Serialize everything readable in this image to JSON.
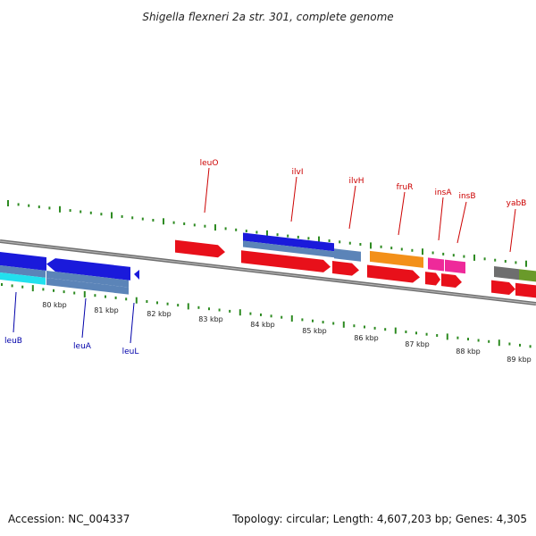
{
  "title": "Shigella flexneri 2a str. 301, complete genome",
  "footer": {
    "accession": "Accession: NC_004337",
    "summary": "Topology: circular; Length: 4,607,203 bp; Genes: 4,305"
  },
  "colors": {
    "backbone": "#8a8a8a",
    "tick": "#2e8b22",
    "label_top": "#cc0000",
    "label_bottom": "#0000aa"
  },
  "ticks": [
    {
      "label": "80 kbp"
    },
    {
      "label": "81 kbp"
    },
    {
      "label": "82 kbp"
    },
    {
      "label": "83 kbp"
    },
    {
      "label": "84 kbp"
    },
    {
      "label": "85 kbp"
    },
    {
      "label": "86 kbp"
    },
    {
      "label": "87 kbp"
    },
    {
      "label": "88 kbp"
    },
    {
      "label": "89 kbp"
    }
  ],
  "gene_labels_top": [
    {
      "name": "leuO"
    },
    {
      "name": "ilvI"
    },
    {
      "name": "ilvH"
    },
    {
      "name": "fruR"
    },
    {
      "name": "insA"
    },
    {
      "name": "insB"
    },
    {
      "name": "yabB"
    }
  ],
  "gene_labels_bottom": [
    {
      "name": "leuB"
    },
    {
      "name": "leuA"
    },
    {
      "name": "leuL"
    }
  ]
}
